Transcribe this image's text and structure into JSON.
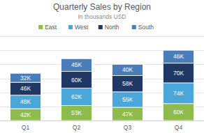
{
  "chart_data": {
    "type": "bar",
    "title": "Quarterly Sales by Region",
    "subtitle": "In thousands USD",
    "categories": [
      "Q1",
      "Q2",
      "Q3",
      "Q4"
    ],
    "series": [
      {
        "name": "East",
        "color": "#8dbb4c",
        "values": [
          42,
          53,
          47,
          60
        ],
        "value_labels": [
          "42K",
          "53K",
          "47K",
          "60K"
        ]
      },
      {
        "name": "West",
        "color": "#4ba7d9",
        "values": [
          48,
          62,
          55,
          74
        ],
        "value_labels": [
          "48K",
          "62K",
          "55K",
          "74K"
        ]
      },
      {
        "name": "North",
        "color": "#203864",
        "values": [
          46,
          60,
          58,
          70
        ],
        "value_labels": [
          "46K",
          "60K",
          "58K",
          "70K"
        ]
      },
      {
        "name": "South",
        "color": "#4a7ebb",
        "values": [
          32,
          45,
          40,
          46
        ],
        "value_labels": [
          "32K",
          "45K",
          "40K",
          "46K"
        ]
      }
    ],
    "ylim": [
      0,
      300
    ],
    "yticks": [
      0,
      50,
      100,
      150,
      200,
      250,
      300
    ],
    "stacked": true,
    "data_labels": true,
    "grid": true,
    "legend": "top",
    "tick_labels": "x"
  }
}
